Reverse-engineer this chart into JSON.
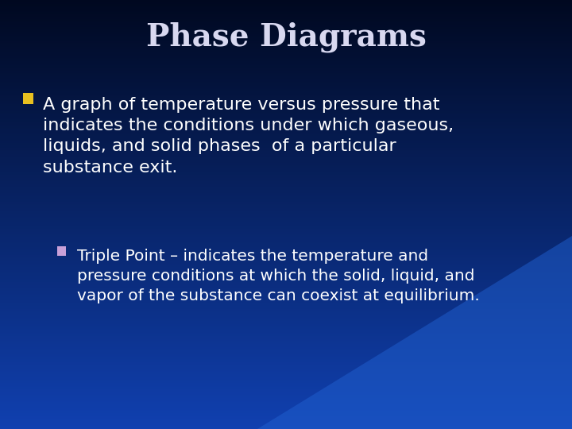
{
  "title": "Phase Diagrams",
  "title_color": "#d8d8f0",
  "title_fontsize": 28,
  "background_top": "#000820",
  "background_bottom": "#1040b0",
  "bullet1_marker_color": "#e8c020",
  "bullet1_text_line1": "A graph of temperature versus pressure that",
  "bullet1_text_line2": "indicates the conditions under which gaseous,",
  "bullet1_text_line3": "liquids, and solid phases  of a particular",
  "bullet1_text_line4": "substance exit.",
  "bullet2_marker_color": "#c8a0d8",
  "bullet2_text_line1": "Triple Point – indicates the temperature and",
  "bullet2_text_line2": "pressure conditions at which the solid, liquid, and",
  "bullet2_text_line3": "vapor of the substance can coexist at equilibrium.",
  "text_color": "#ffffff",
  "bullet1_fontsize": 16,
  "bullet2_fontsize": 14.5,
  "figwidth": 7.2,
  "figheight": 5.4,
  "dpi": 100
}
